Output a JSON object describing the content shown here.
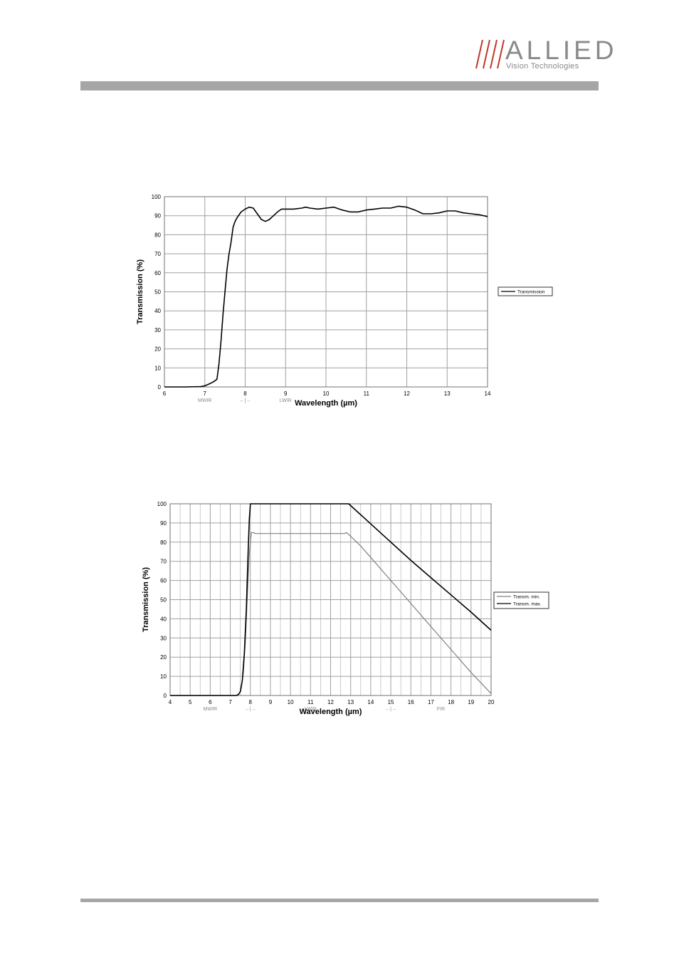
{
  "header": {
    "logo_word": "ALLIED",
    "logo_sub": "Vision Technologies",
    "colors": {
      "logo": "#8a8a8a",
      "logo_stripes": "#c0392b",
      "bars": "#a6a6a6"
    }
  },
  "chart_data": [
    {
      "type": "line",
      "xlabel": "Wavelength (µm)",
      "ylabel": "Transmission (%)",
      "xlim": [
        6,
        14
      ],
      "ylim": [
        0,
        100
      ],
      "xticks": [
        6,
        7,
        8,
        9,
        10,
        11,
        12,
        13,
        14
      ],
      "yticks": [
        0,
        10,
        20,
        30,
        40,
        50,
        60,
        70,
        80,
        90,
        100
      ],
      "grid": true,
      "legend_position": "right",
      "band_labels": [
        {
          "text": "MWIR",
          "x": 7.0
        },
        {
          "text": "←|→",
          "x": 8.0
        },
        {
          "text": "LWIR",
          "x": 9.0
        }
      ],
      "series": [
        {
          "name": "Transmission",
          "color": "#000000",
          "x": [
            6.0,
            6.5,
            6.9,
            7.0,
            7.1,
            7.2,
            7.3,
            7.35,
            7.4,
            7.45,
            7.5,
            7.55,
            7.6,
            7.65,
            7.7,
            7.75,
            7.8,
            7.9,
            8.0,
            8.1,
            8.2,
            8.3,
            8.4,
            8.5,
            8.6,
            8.7,
            8.8,
            8.9,
            9.0,
            9.2,
            9.4,
            9.5,
            9.6,
            9.8,
            10.0,
            10.2,
            10.4,
            10.6,
            10.8,
            11.0,
            11.2,
            11.4,
            11.6,
            11.8,
            12.0,
            12.2,
            12.4,
            12.6,
            12.8,
            13.0,
            13.2,
            13.4,
            13.6,
            13.8,
            14.0
          ],
          "y": [
            0,
            0,
            0.2,
            0.6,
            1.5,
            2.5,
            4,
            12,
            24,
            38,
            50,
            62,
            70,
            76,
            84,
            87,
            89,
            92,
            93.5,
            94.5,
            94,
            91,
            88,
            87,
            88,
            90,
            92,
            93.5,
            93.5,
            93.5,
            94,
            94.5,
            94,
            93.5,
            94,
            94.5,
            93,
            92,
            92,
            93,
            93.5,
            94,
            94,
            95,
            94.5,
            93,
            91,
            91,
            91.5,
            92.5,
            92.5,
            91.5,
            91,
            90.5,
            89.5
          ]
        }
      ]
    },
    {
      "type": "line",
      "xlabel": "Wavelength (µm)",
      "ylabel": "Transmission (%)",
      "xlim": [
        4,
        20
      ],
      "ylim": [
        0,
        100
      ],
      "xticks": [
        4,
        5,
        6,
        7,
        8,
        9,
        10,
        11,
        12,
        13,
        14,
        15,
        16,
        17,
        18,
        19,
        20
      ],
      "yticks": [
        0,
        10,
        20,
        30,
        40,
        50,
        60,
        70,
        80,
        90,
        100
      ],
      "grid": true,
      "legend_position": "right",
      "band_labels": [
        {
          "text": "MWIR",
          "x": 6.0
        },
        {
          "text": "←|→",
          "x": 8.0
        },
        {
          "text": "LWIR",
          "x": 11.0
        },
        {
          "text": "←|→",
          "x": 15.0
        },
        {
          "text": "FIR",
          "x": 17.5
        }
      ],
      "series": [
        {
          "name": "Transm. min.",
          "color": "#808080",
          "x": [
            4.0,
            7.3,
            7.45,
            7.55,
            7.65,
            7.75,
            7.85,
            7.95,
            8.05,
            8.15,
            8.25,
            8.5,
            12.7,
            12.8,
            13.0,
            13.5,
            14.0,
            15.0,
            16.0,
            17.0,
            18.0,
            19.0,
            20.0
          ],
          "y": [
            0,
            0,
            1,
            4,
            12,
            28,
            52,
            74,
            85,
            85,
            84.5,
            84.5,
            84.5,
            85,
            83,
            78,
            72,
            60,
            48,
            36,
            24,
            12,
            1
          ]
        },
        {
          "name": "Transm. max.",
          "color": "#000000",
          "x": [
            4.0,
            7.3,
            7.4,
            7.5,
            7.6,
            7.7,
            7.8,
            7.85,
            7.9,
            7.95,
            8.0,
            8.05,
            12.9,
            14.0,
            15.0,
            16.0,
            17.0,
            18.0,
            19.0,
            20.0
          ],
          "y": [
            0,
            0,
            0.5,
            2,
            8,
            22,
            45,
            62,
            78,
            92,
            100,
            100,
            100,
            89.5,
            80,
            70.5,
            61.5,
            52.5,
            43.5,
            34
          ]
        }
      ]
    }
  ]
}
